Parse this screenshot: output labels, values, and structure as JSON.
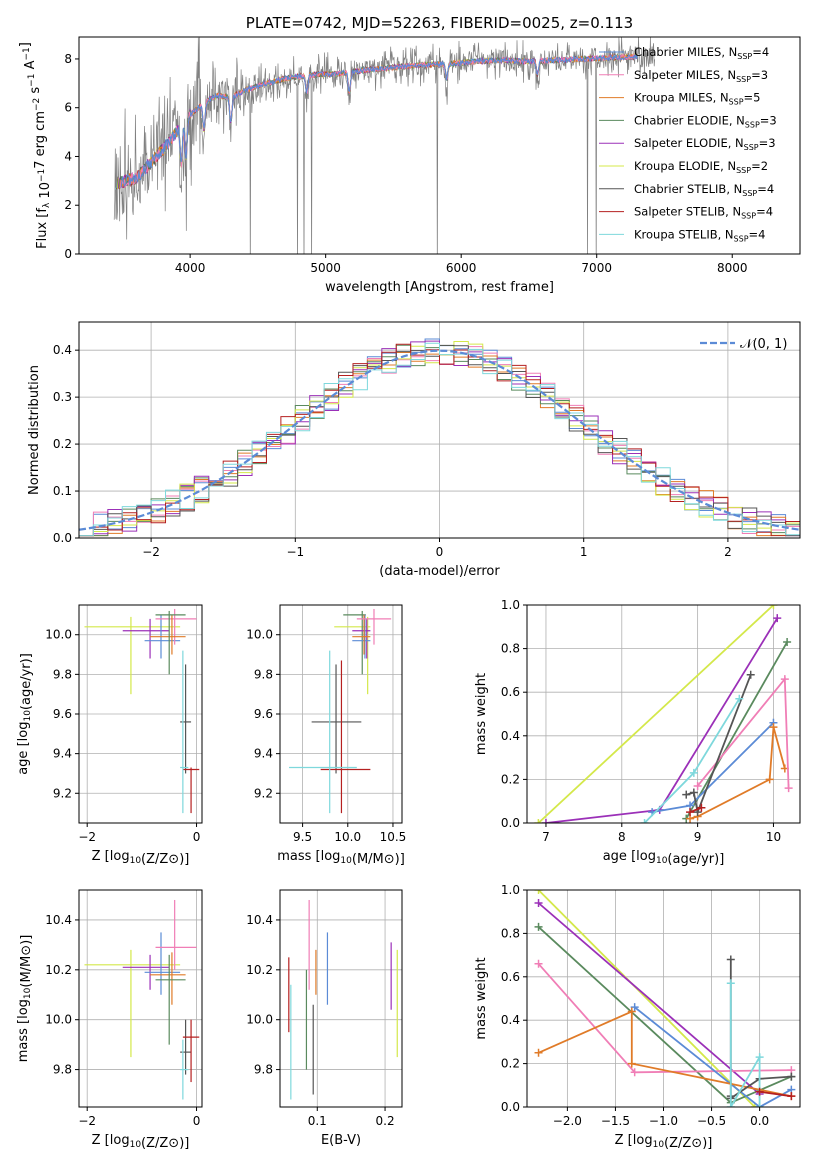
{
  "figure_title": "PLATE=0742, MJD=52263, FIBERID=0025, z=0.113",
  "colors": {
    "chabrier_miles": "#5b8bd6",
    "salpeter_miles": "#f07eb6",
    "kroupa_miles": "#e07b28",
    "chabrier_elodie": "#5a8a5e",
    "salpeter_elodie": "#9b30b8",
    "kroupa_elodie": "#d4e84a",
    "chabrier_stelib": "#555555",
    "salpeter_stelib": "#b52020",
    "kroupa_stelib": "#7ed8dc",
    "data": "#808080",
    "normal": "#5b8bd6"
  },
  "chart_data": [
    {
      "id": "spectrum",
      "type": "line",
      "title": "PLATE=0742, MJD=52263, FIBERID=0025, z=0.113",
      "xlabel": "wavelength [Angstrom, rest frame]",
      "ylabel": "Flux [f_λ 10^-17 erg cm^-2 s^-1 A^-1]",
      "xlim": [
        3180,
        8500
      ],
      "ylim": [
        0,
        8.9
      ],
      "xticks": [
        "4000",
        "5000",
        "6000",
        "7000",
        "8000"
      ],
      "yticks": [
        "0",
        "2",
        "4",
        "6",
        "8"
      ],
      "grid": false,
      "legend_position": "top-right",
      "legend": [
        {
          "label": "Chabrier MILES, N",
          "sub": "SSP",
          "val": "=4",
          "color": "chabrier_miles"
        },
        {
          "label": "Salpeter MILES, N",
          "sub": "SSP",
          "val": "=3",
          "color": "salpeter_miles"
        },
        {
          "label": "Kroupa MILES, N",
          "sub": "SSP",
          "val": "=5",
          "color": "kroupa_miles"
        },
        {
          "label": "Chabrier ELODIE, N",
          "sub": "SSP",
          "val": "=3",
          "color": "chabrier_elodie"
        },
        {
          "label": "Salpeter ELODIE, N",
          "sub": "SSP",
          "val": "=3",
          "color": "salpeter_elodie"
        },
        {
          "label": "Kroupa ELODIE, N",
          "sub": "SSP",
          "val": "=2",
          "color": "kroupa_elodie"
        },
        {
          "label": "Chabrier STELIB, N",
          "sub": "SSP",
          "val": "=4",
          "color": "chabrier_stelib"
        },
        {
          "label": "Salpeter STELIB, N",
          "sub": "SSP",
          "val": "=4",
          "color": "salpeter_stelib"
        },
        {
          "label": "Kroupa STELIB, N",
          "sub": "SSP",
          "val": "=4",
          "color": "kroupa_stelib"
        }
      ],
      "continuum": {
        "x": [
          3450,
          3600,
          3700,
          3800,
          3900,
          4000,
          4100,
          4200,
          4300,
          4400,
          4500,
          4700,
          4900,
          5100,
          5300,
          5500,
          5700,
          5900,
          6100,
          6300,
          6500,
          6700,
          6900,
          7100,
          7300
        ],
        "y": [
          2.9,
          3.1,
          3.7,
          4.3,
          5.0,
          5.7,
          6.2,
          6.5,
          6.4,
          6.7,
          6.9,
          7.2,
          7.35,
          7.4,
          7.55,
          7.65,
          7.75,
          7.8,
          7.9,
          7.95,
          7.9,
          7.95,
          8.0,
          8.05,
          8.1
        ]
      },
      "dips": [
        {
          "x": 3935,
          "depth": 2.2
        },
        {
          "x": 3970,
          "depth": 2.0
        },
        {
          "x": 4102,
          "depth": 1.6
        },
        {
          "x": 4300,
          "depth": 1.4
        },
        {
          "x": 4861,
          "depth": 1.0
        },
        {
          "x": 5175,
          "depth": 1.2
        },
        {
          "x": 5893,
          "depth": 0.9
        },
        {
          "x": 6563,
          "depth": 0.8
        }
      ]
    },
    {
      "id": "residuals",
      "type": "histogram",
      "xlabel": "(data-model)/error",
      "ylabel": "Normed distribution",
      "xlim": [
        -2.5,
        2.5
      ],
      "ylim": [
        0,
        0.46
      ],
      "xticks": [
        "−2",
        "−1",
        "0",
        "1",
        "2"
      ],
      "yticks": [
        "0.0",
        "0.1",
        "0.2",
        "0.3",
        "0.4"
      ],
      "grid": true,
      "legend_position": "top-right",
      "legend": [
        {
          "label": "𝒩(0, 1)",
          "color": "normal"
        }
      ],
      "bin_width": 0.1,
      "bin_start": -2.5
    },
    {
      "id": "age_vs_z",
      "type": "errorbar",
      "xlabel": "Z [log10(Z/Z⊙)]",
      "ylabel": "age  [log10(age/yr)]",
      "xlim": [
        -2.15,
        0.1
      ],
      "ylim": [
        9.05,
        10.15
      ],
      "xticks": [
        "−2",
        "0"
      ],
      "yticks": [
        "9.2",
        "9.4",
        "9.6",
        "9.8",
        "10.0"
      ],
      "grid": true,
      "points": [
        {
          "s": "kroupa_elodie",
          "x": -1.2,
          "y": 10.04,
          "xl": -2.05,
          "xh": -0.3,
          "yl": 9.7,
          "yh": 10.09
        },
        {
          "s": "salpeter_elodie",
          "x": -0.85,
          "y": 10.02,
          "xl": -1.35,
          "xh": -0.5,
          "yl": 9.88,
          "yh": 10.08
        },
        {
          "s": "chabrier_miles",
          "x": -0.65,
          "y": 9.97,
          "xl": -0.95,
          "xh": -0.3,
          "yl": 9.88,
          "yh": 10.1
        },
        {
          "s": "salpeter_miles",
          "x": -0.4,
          "y": 10.08,
          "xl": -0.75,
          "xh": 0.0,
          "yl": 9.95,
          "yh": 10.13
        },
        {
          "s": "kroupa_miles",
          "x": -0.45,
          "y": 9.99,
          "xl": -0.85,
          "xh": -0.2,
          "yl": 9.9,
          "yh": 10.1
        },
        {
          "s": "chabrier_elodie",
          "x": -0.5,
          "y": 10.1,
          "xl": -0.75,
          "xh": -0.2,
          "yl": 9.8,
          "yh": 10.12
        },
        {
          "s": "chabrier_stelib",
          "x": -0.2,
          "y": 9.56,
          "xl": -0.3,
          "xh": -0.1,
          "yl": 9.3,
          "yh": 9.85
        },
        {
          "s": "salpeter_stelib",
          "x": -0.1,
          "y": 9.32,
          "xl": -0.25,
          "xh": 0.05,
          "yl": 9.1,
          "yh": 9.33
        },
        {
          "s": "kroupa_stelib",
          "x": -0.25,
          "y": 9.33,
          "xl": -0.3,
          "xh": -0.15,
          "yl": 9.1,
          "yh": 9.92
        }
      ]
    },
    {
      "id": "age_vs_mass",
      "type": "errorbar",
      "xlabel": "mass [log10(M/M⊙)]",
      "ylabel": "",
      "xlim": [
        9.25,
        10.6
      ],
      "ylim": [
        9.05,
        10.15
      ],
      "xticks": [
        "9.5",
        "10.0",
        "10.5"
      ],
      "yticks": [
        "9.2",
        "9.4",
        "9.6",
        "9.8",
        "10.0"
      ],
      "grid": true,
      "points": [
        {
          "s": "kroupa_elodie",
          "x": 10.22,
          "y": 10.04,
          "xl": 9.85,
          "xh": 10.25,
          "yl": 9.7,
          "yh": 10.09
        },
        {
          "s": "chabrier_elodie",
          "x": 10.16,
          "y": 10.1,
          "xl": 9.95,
          "xh": 10.2,
          "yl": 9.8,
          "yh": 10.12
        },
        {
          "s": "salpeter_elodie",
          "x": 10.21,
          "y": 10.02,
          "xl": 10.05,
          "xh": 10.25,
          "yl": 9.88,
          "yh": 10.08
        },
        {
          "s": "chabrier_miles",
          "x": 10.19,
          "y": 9.97,
          "xl": 10.05,
          "xh": 10.25,
          "yl": 9.88,
          "yh": 10.1
        },
        {
          "s": "kroupa_miles",
          "x": 10.18,
          "y": 9.99,
          "xl": 10.05,
          "xh": 10.25,
          "yl": 9.9,
          "yh": 10.1
        },
        {
          "s": "salpeter_miles",
          "x": 10.29,
          "y": 10.08,
          "xl": 10.1,
          "xh": 10.48,
          "yl": 9.95,
          "yh": 10.13
        },
        {
          "s": "chabrier_stelib",
          "x": 9.87,
          "y": 9.56,
          "xl": 9.6,
          "xh": 10.15,
          "yl": 9.3,
          "yh": 9.85
        },
        {
          "s": "salpeter_stelib",
          "x": 9.93,
          "y": 9.32,
          "xl": 9.7,
          "xh": 10.25,
          "yl": 9.1,
          "yh": 9.87
        },
        {
          "s": "kroupa_stelib",
          "x": 9.8,
          "y": 9.33,
          "xl": 9.35,
          "xh": 10.1,
          "yl": 9.1,
          "yh": 9.92
        }
      ]
    },
    {
      "id": "weight_vs_age",
      "type": "line",
      "xlabel": "age  [log10(age/yr)]",
      "ylabel": "mass weight",
      "xlim": [
        6.75,
        10.35
      ],
      "ylim": [
        0,
        1.0
      ],
      "xticks": [
        "7",
        "8",
        "9",
        "10"
      ],
      "yticks": [
        "0.0",
        "0.2",
        "0.4",
        "0.6",
        "0.8",
        "1.0"
      ],
      "grid": true,
      "series": [
        {
          "s": "kroupa_elodie",
          "x": [
            6.9,
            10.0
          ],
          "y": [
            0.0,
            1.0
          ]
        },
        {
          "s": "salpeter_elodie",
          "x": [
            7.0,
            8.5,
            10.05
          ],
          "y": [
            0.0,
            0.06,
            0.94
          ]
        },
        {
          "s": "chabrier_elodie",
          "x": [
            8.85,
            10.18
          ],
          "y": [
            0.02,
            0.83
          ]
        },
        {
          "s": "chabrier_miles",
          "x": [
            8.4,
            8.9,
            10.0
          ],
          "y": [
            0.05,
            0.08,
            0.46
          ]
        },
        {
          "s": "kroupa_miles",
          "x": [
            8.9,
            9.0,
            9.95,
            10.0,
            10.15
          ],
          "y": [
            0.02,
            0.03,
            0.2,
            0.44,
            0.25
          ]
        },
        {
          "s": "salpeter_miles",
          "x": [
            9.0,
            10.15,
            10.2
          ],
          "y": [
            0.17,
            0.66,
            0.16
          ]
        },
        {
          "s": "chabrier_stelib",
          "x": [
            8.85,
            8.95,
            9.0,
            9.7
          ],
          "y": [
            0.13,
            0.14,
            0.05,
            0.68
          ]
        },
        {
          "s": "salpeter_stelib",
          "x": [
            8.9,
            9.05
          ],
          "y": [
            0.05,
            0.07
          ]
        },
        {
          "s": "kroupa_stelib",
          "x": [
            8.3,
            8.95,
            9.55
          ],
          "y": [
            0.0,
            0.23,
            0.57
          ]
        }
      ]
    },
    {
      "id": "mass_vs_z",
      "type": "errorbar",
      "xlabel": "Z [log10(Z/Z⊙)]",
      "ylabel": "mass [log10(M/M⊙)]",
      "xlim": [
        -2.15,
        0.1
      ],
      "ylim": [
        9.65,
        10.52
      ],
      "xticks": [
        "−2",
        "0"
      ],
      "yticks": [
        "9.8",
        "10.0",
        "10.2",
        "10.4"
      ],
      "grid": true,
      "points": [
        {
          "s": "kroupa_elodie",
          "x": -1.2,
          "y": 10.22,
          "xl": -2.05,
          "xh": -0.3,
          "yl": 9.85,
          "yh": 10.28
        },
        {
          "s": "salpeter_elodie",
          "x": -0.85,
          "y": 10.21,
          "xl": -1.35,
          "xh": -0.5,
          "yl": 10.12,
          "yh": 10.26
        },
        {
          "s": "chabrier_miles",
          "x": -0.65,
          "y": 10.19,
          "xl": -0.95,
          "xh": -0.3,
          "yl": 10.1,
          "yh": 10.35
        },
        {
          "s": "salpeter_miles",
          "x": -0.4,
          "y": 10.29,
          "xl": -0.75,
          "xh": 0.0,
          "yl": 10.2,
          "yh": 10.48
        },
        {
          "s": "kroupa_miles",
          "x": -0.45,
          "y": 10.18,
          "xl": -0.85,
          "xh": -0.2,
          "yl": 10.06,
          "yh": 10.27
        },
        {
          "s": "chabrier_elodie",
          "x": -0.5,
          "y": 10.16,
          "xl": -0.75,
          "xh": -0.2,
          "yl": 9.9,
          "yh": 10.26
        },
        {
          "s": "chabrier_stelib",
          "x": -0.2,
          "y": 9.87,
          "xl": -0.3,
          "xh": -0.1,
          "yl": 9.78,
          "yh": 10.0
        },
        {
          "s": "salpeter_stelib",
          "x": -0.1,
          "y": 9.93,
          "xl": -0.25,
          "xh": 0.05,
          "yl": 9.75,
          "yh": 10.0
        },
        {
          "s": "kroupa_stelib",
          "x": -0.25,
          "y": 9.8,
          "xl": -0.3,
          "xh": -0.15,
          "yl": 9.68,
          "yh": 9.92
        }
      ]
    },
    {
      "id": "mass_vs_ebv",
      "type": "errorbar",
      "xlabel": "E(B-V)",
      "ylabel": "",
      "xlim": [
        0.045,
        0.225
      ],
      "ylim": [
        9.65,
        10.52
      ],
      "xticks": [
        "0.1",
        "0.2"
      ],
      "yticks": [
        "9.8",
        "10.0",
        "10.2",
        "10.4"
      ],
      "grid": true,
      "points": [
        {
          "s": "salpeter_stelib",
          "x": 0.058,
          "y": 10.1,
          "yl": 9.95,
          "yh": 10.25
        },
        {
          "s": "kroupa_stelib",
          "x": 0.061,
          "y": 9.9,
          "yl": 9.68,
          "yh": 10.14
        },
        {
          "s": "chabrier_elodie",
          "x": 0.084,
          "y": 10.0,
          "yl": 9.8,
          "yh": 10.2
        },
        {
          "s": "salpeter_miles",
          "x": 0.088,
          "y": 10.3,
          "yl": 10.12,
          "yh": 10.48
        },
        {
          "s": "chabrier_stelib",
          "x": 0.094,
          "y": 9.88,
          "yl": 9.7,
          "yh": 10.06
        },
        {
          "s": "kroupa_miles",
          "x": 0.098,
          "y": 10.2,
          "yl": 10.1,
          "yh": 10.28
        },
        {
          "s": "chabrier_miles",
          "x": 0.115,
          "y": 10.2,
          "yl": 10.06,
          "yh": 10.35
        },
        {
          "s": "salpeter_elodie",
          "x": 0.209,
          "y": 10.17,
          "yl": 10.04,
          "yh": 10.31
        },
        {
          "s": "kroupa_elodie",
          "x": 0.218,
          "y": 10.06,
          "yl": 9.85,
          "yh": 10.28
        }
      ]
    },
    {
      "id": "weight_vs_z",
      "type": "line",
      "xlabel": "Z [log10(Z/Z⊙)]",
      "ylabel": "mass weight",
      "xlim": [
        -2.42,
        0.42
      ],
      "ylim": [
        0,
        1.0
      ],
      "xticks": [
        "−2.0",
        "−1.5",
        "−1.0",
        "−0.5",
        "0.0"
      ],
      "yticks": [
        "0.0",
        "0.2",
        "0.4",
        "0.6",
        "0.8",
        "1.0"
      ],
      "grid": true,
      "series": [
        {
          "s": "kroupa_elodie",
          "x": [
            -2.3,
            -0.05
          ],
          "y": [
            1.0,
            0.0
          ]
        },
        {
          "s": "salpeter_elodie",
          "x": [
            -2.3,
            0.0
          ],
          "y": [
            0.94,
            0.06
          ]
        },
        {
          "s": "chabrier_elodie",
          "x": [
            -2.3,
            -0.3,
            0.33
          ],
          "y": [
            0.83,
            0.02,
            0.14
          ]
        },
        {
          "s": "salpeter_miles",
          "x": [
            -2.3,
            -1.3,
            0.33
          ],
          "y": [
            0.66,
            0.16,
            0.17
          ]
        },
        {
          "s": "chabrier_miles",
          "x": [
            -1.3,
            0.0,
            0.33
          ],
          "y": [
            0.46,
            0.0,
            0.08
          ]
        },
        {
          "s": "kroupa_miles",
          "x": [
            -2.3,
            -1.33,
            -1.33,
            0.33
          ],
          "y": [
            0.25,
            0.44,
            0.2,
            0.05
          ]
        },
        {
          "s": "chabrier_stelib",
          "x": [
            -0.3,
            -0.3,
            -0.3,
            0.0,
            0.33
          ],
          "y": [
            0.68,
            0.05,
            0.04,
            0.13,
            0.14
          ]
        },
        {
          "s": "kroupa_stelib",
          "x": [
            -0.3,
            -0.3,
            0.0,
            0.0
          ],
          "y": [
            0.57,
            0.0,
            0.23,
            0.0
          ]
        },
        {
          "s": "salpeter_stelib",
          "x": [
            0.0,
            0.33
          ],
          "y": [
            0.07,
            0.05
          ]
        }
      ]
    }
  ]
}
